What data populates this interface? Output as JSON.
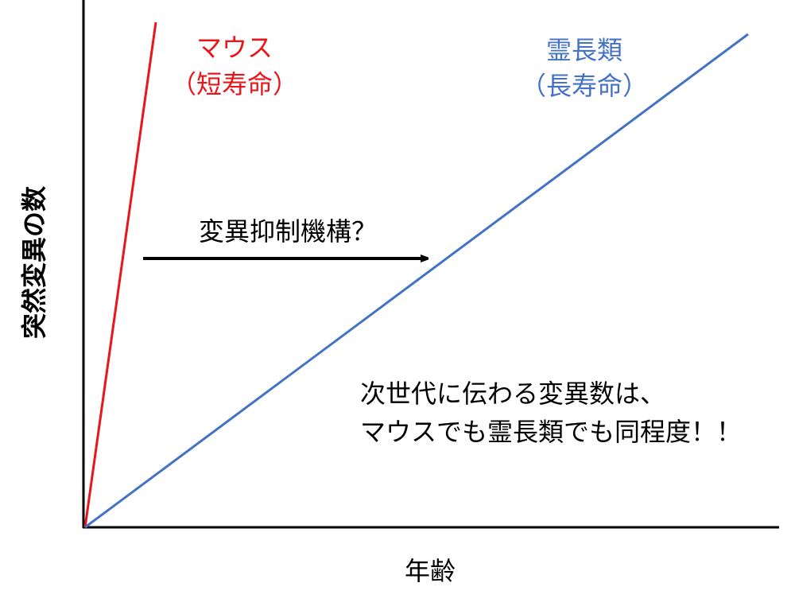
{
  "axes": {
    "y_label": "突然変異の数",
    "x_label": "年齢"
  },
  "lines": [
    {
      "label_line1": "マウス",
      "label_line2": "（短寿命）"
    },
    {
      "label_line1": "霊長類",
      "label_line2": "（長寿命）"
    }
  ],
  "arrow": {
    "label": "変異抑制機構？"
  },
  "note": {
    "line1": "次世代に伝わる変異数は、",
    "line2": "マウスでも霊長類でも同程度！！"
  }
}
